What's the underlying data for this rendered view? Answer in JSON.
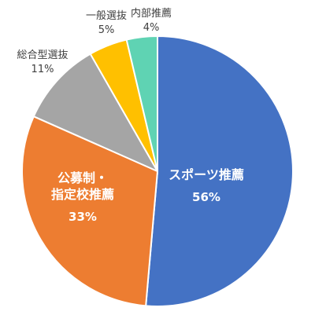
{
  "chart_data": {
    "type": "pie",
    "title": "",
    "start_angle_deg": 0,
    "direction": "clockwise",
    "slices": [
      {
        "label_lines": [
          "スポーツ推薦"
        ],
        "value": 56,
        "value_label": "56%",
        "color": "#4472C4",
        "label_position": "inside"
      },
      {
        "label_lines": [
          "公募制・",
          "指定校推薦"
        ],
        "value": 33,
        "value_label": "33%",
        "color": "#ED7D31",
        "label_position": "inside"
      },
      {
        "label_lines": [
          "総合型選抜"
        ],
        "value": 11,
        "value_label": "11%",
        "color": "#A5A5A5",
        "label_position": "outside"
      },
      {
        "label_lines": [
          "一般選抜"
        ],
        "value": 5,
        "value_label": "5%",
        "color": "#FFC000",
        "label_position": "outside"
      },
      {
        "label_lines": [
          "内部推薦"
        ],
        "value": 4,
        "value_label": "4%",
        "color": "#5FD3B3",
        "label_position": "outside"
      }
    ],
    "legend": "none"
  }
}
